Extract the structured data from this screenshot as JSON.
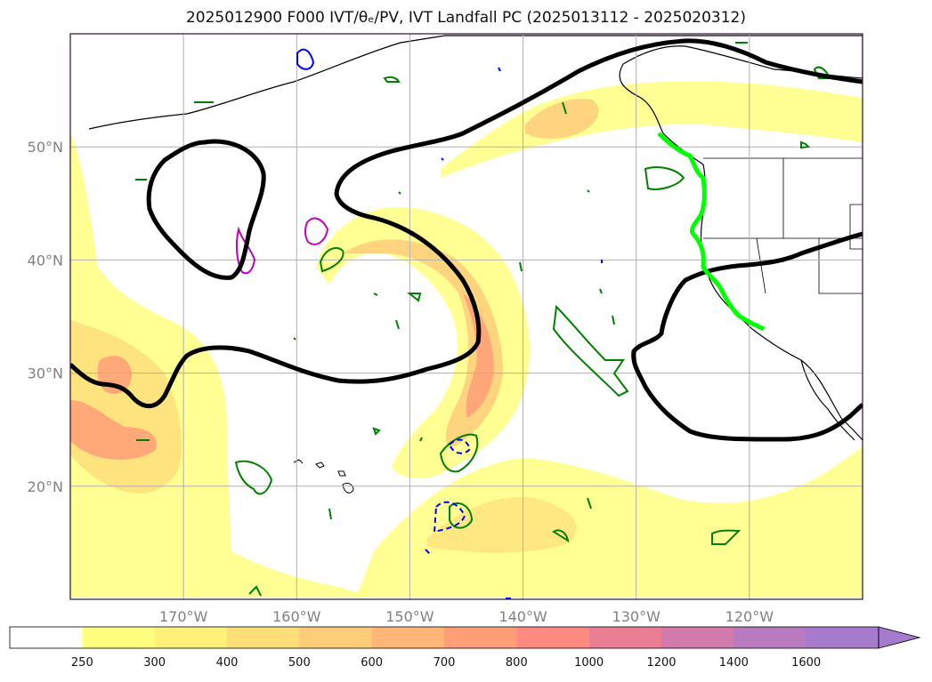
{
  "title": "2025012900 F000 IVT/θₑ/PV, IVT Landfall PC (2025013112 - 2025020312)",
  "map": {
    "lon_range": [
      -180,
      -110
    ],
    "lat_range": [
      10,
      60
    ],
    "lat_ticks": [
      {
        "value": 20,
        "label": "20°N"
      },
      {
        "value": 30,
        "label": "30°N"
      },
      {
        "value": 40,
        "label": "40°N"
      },
      {
        "value": 50,
        "label": "50°N"
      }
    ],
    "lon_ticks": [
      {
        "value": -170,
        "label": "170°W"
      },
      {
        "value": -160,
        "label": "160°W"
      },
      {
        "value": -150,
        "label": "150°W"
      },
      {
        "value": -140,
        "label": "140°W"
      },
      {
        "value": -130,
        "label": "130°W"
      },
      {
        "value": -120,
        "label": "120°W"
      }
    ],
    "grid": true
  },
  "colorbar": {
    "extend": "max",
    "levels": [
      {
        "label": "250",
        "color": "#ffffff"
      },
      {
        "label": "300",
        "color": "#ffff80"
      },
      {
        "label": "400",
        "color": "#fff07a"
      },
      {
        "label": "500",
        "color": "#ffde7a"
      },
      {
        "label": "600",
        "color": "#ffcc7a"
      },
      {
        "label": "700",
        "color": "#ffb676"
      },
      {
        "label": "800",
        "color": "#ff9f78"
      },
      {
        "label": "1000",
        "color": "#ff8a80"
      },
      {
        "label": "1200",
        "color": "#ea7f94"
      },
      {
        "label": "1400",
        "color": "#d27aab"
      },
      {
        "label": "1600",
        "color": "#ba7ac0"
      },
      {
        "label": "",
        "color": "#a67acd"
      }
    ]
  },
  "colors": {
    "theta_e_contour": "#000000",
    "pv_contour": "#008000",
    "negative_contour": "#0000ff",
    "magenta_contour": "#c000c0",
    "landfall_line": "#00ff00"
  }
}
